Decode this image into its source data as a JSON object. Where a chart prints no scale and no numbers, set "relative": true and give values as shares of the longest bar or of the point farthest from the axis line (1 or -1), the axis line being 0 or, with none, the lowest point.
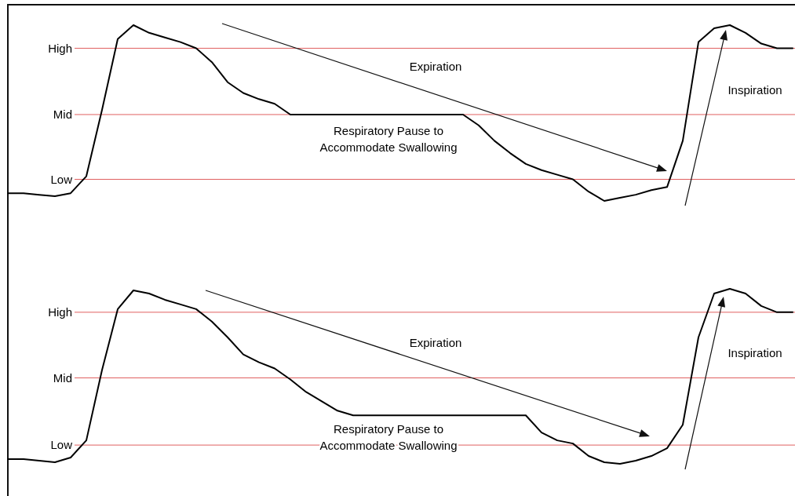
{
  "chart_data": [
    {
      "type": "line",
      "relative": true,
      "categories": [
        null,
        null,
        null,
        null,
        null,
        null,
        null,
        null,
        null,
        null,
        null,
        null,
        null,
        null,
        null,
        null,
        null,
        null,
        null,
        null,
        null,
        null,
        null,
        null,
        null,
        null,
        null,
        null,
        null,
        null,
        null,
        null,
        null,
        null,
        null,
        null,
        null,
        null,
        null,
        null,
        null,
        null,
        null,
        null,
        null,
        null,
        null,
        null,
        null,
        null,
        null
      ],
      "series": [
        {
          "color": "#000000",
          "values": [
            -0.09,
            -0.09,
            -0.1,
            -0.11,
            -0.09,
            0.02,
            0.45,
            0.91,
            1.0,
            0.95,
            0.92,
            0.89,
            0.85,
            0.76,
            0.63,
            0.56,
            0.52,
            0.49,
            0.42,
            0.42,
            0.42,
            0.42,
            0.42,
            0.42,
            0.42,
            0.42,
            0.42,
            0.42,
            0.42,
            0.42,
            0.35,
            0.25,
            0.17,
            0.1,
            0.06,
            0.03,
            0.0,
            -0.08,
            -0.14,
            -0.12,
            -0.1,
            -0.07,
            -0.05,
            0.25,
            0.89,
            0.98,
            1.0,
            0.95,
            0.88,
            0.85,
            0.85
          ]
        }
      ],
      "ref_lines": [
        {
          "axis": "y",
          "value": 0.85,
          "label": "High",
          "color": "#e06060"
        },
        {
          "axis": "y",
          "value": 0.42,
          "label": "Mid",
          "color": "#e06060"
        },
        {
          "axis": "y",
          "value": 0,
          "label": "Low",
          "color": "#e06060"
        }
      ],
      "annotations": [
        "Expiration",
        "Respiratory Pause to\nAccommodate Swallowing",
        "Inspiration"
      ]
    },
    {
      "type": "line",
      "relative": true,
      "categories": [
        null,
        null,
        null,
        null,
        null,
        null,
        null,
        null,
        null,
        null,
        null,
        null,
        null,
        null,
        null,
        null,
        null,
        null,
        null,
        null,
        null,
        null,
        null,
        null,
        null,
        null,
        null,
        null,
        null,
        null,
        null,
        null,
        null,
        null,
        null,
        null,
        null,
        null,
        null,
        null,
        null,
        null,
        null,
        null,
        null,
        null,
        null,
        null,
        null,
        null,
        null
      ],
      "series": [
        {
          "color": "#000000",
          "values": [
            -0.09,
            -0.09,
            -0.1,
            -0.11,
            -0.08,
            0.03,
            0.48,
            0.87,
            0.99,
            0.97,
            0.93,
            0.9,
            0.87,
            0.79,
            0.69,
            0.58,
            0.53,
            0.49,
            0.42,
            0.34,
            0.28,
            0.22,
            0.19,
            0.19,
            0.19,
            0.19,
            0.19,
            0.19,
            0.19,
            0.19,
            0.19,
            0.19,
            0.19,
            0.19,
            0.08,
            0.03,
            0.01,
            -0.07,
            -0.11,
            -0.12,
            -0.1,
            -0.07,
            -0.02,
            0.13,
            0.69,
            0.97,
            1.0,
            0.97,
            0.89,
            0.85,
            0.85
          ]
        }
      ],
      "ref_lines": [
        {
          "axis": "y",
          "value": 0.85,
          "label": "High",
          "color": "#e06060"
        },
        {
          "axis": "y",
          "value": 0.43,
          "label": "Mid",
          "color": "#e06060"
        },
        {
          "axis": "y",
          "value": 0,
          "label": "Low",
          "color": "#e06060"
        }
      ],
      "annotations": [
        "Expiration",
        "Respiratory Pause to\nAccommodate Swallowing",
        "Inspiration"
      ]
    }
  ]
}
